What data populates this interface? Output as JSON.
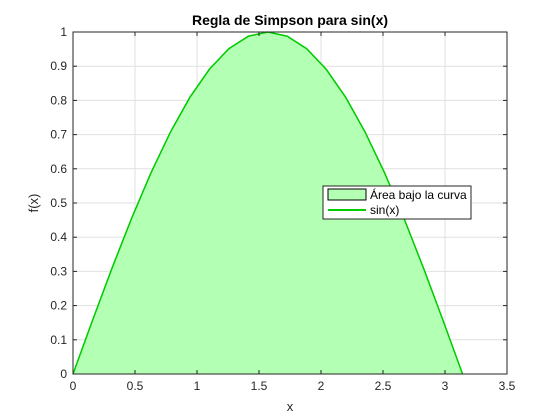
{
  "chart_data": {
    "type": "area",
    "title": "Regla de Simpson para sin(x)",
    "xlabel": "x",
    "ylabel": "f(x)",
    "xlim": [
      0,
      3.5
    ],
    "ylim": [
      0,
      1
    ],
    "x_ticks": [
      0,
      0.5,
      1,
      1.5,
      2,
      2.5,
      3,
      3.5
    ],
    "x_tick_labels": [
      "0",
      "0.5",
      "1",
      "1.5",
      "2",
      "2.5",
      "3",
      "3.5"
    ],
    "y_ticks": [
      0,
      0.1,
      0.2,
      0.3,
      0.4,
      0.5,
      0.6,
      0.7,
      0.8,
      0.9,
      1
    ],
    "y_tick_labels": [
      "0",
      "0.1",
      "0.2",
      "0.3",
      "0.4",
      "0.5",
      "0.6",
      "0.7",
      "0.8",
      "0.9",
      "1"
    ],
    "grid": true,
    "legend_position": "right",
    "series": [
      {
        "name": "Área bajo la curva",
        "kind": "area",
        "color": "#b3ffb3",
        "edge_color": "#000000",
        "x": [
          0,
          0.1571,
          0.3142,
          0.4712,
          0.6283,
          0.7854,
          0.9425,
          1.0996,
          1.2566,
          1.4137,
          1.5708,
          1.7279,
          1.885,
          2.042,
          2.1991,
          2.3562,
          2.5133,
          2.6704,
          2.8274,
          2.9845,
          3.1416
        ],
        "y": [
          0,
          0.1564,
          0.309,
          0.454,
          0.5878,
          0.7071,
          0.809,
          0.891,
          0.9511,
          0.9877,
          1,
          0.9877,
          0.9511,
          0.891,
          0.809,
          0.7071,
          0.5878,
          0.454,
          0.309,
          0.1564,
          0
        ]
      },
      {
        "name": "sin(x)",
        "kind": "line",
        "color": "#00cc00",
        "x": [
          0,
          0.1571,
          0.3142,
          0.4712,
          0.6283,
          0.7854,
          0.9425,
          1.0996,
          1.2566,
          1.4137,
          1.5708,
          1.7279,
          1.885,
          2.042,
          2.1991,
          2.3562,
          2.5133,
          2.6704,
          2.8274,
          2.9845,
          3.1416
        ],
        "y": [
          0,
          0.1564,
          0.309,
          0.454,
          0.5878,
          0.7071,
          0.809,
          0.891,
          0.9511,
          0.9877,
          1,
          0.9877,
          0.9511,
          0.891,
          0.809,
          0.7071,
          0.5878,
          0.454,
          0.309,
          0.1564,
          0
        ]
      }
    ]
  }
}
